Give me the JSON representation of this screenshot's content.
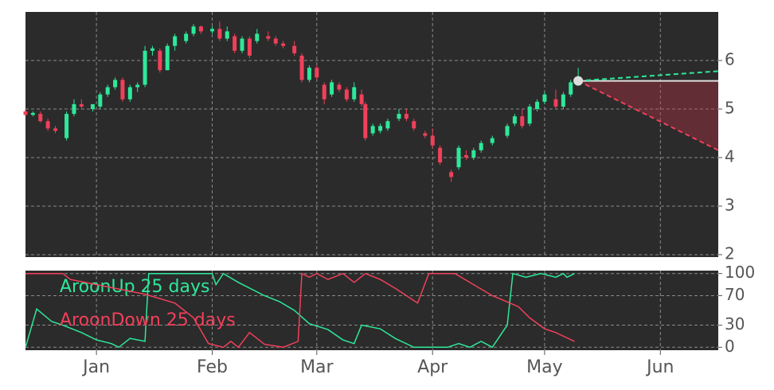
{
  "chart_data": [
    {
      "type": "candlestick",
      "up_color": "#2ee89a",
      "down_color": "#f0405a",
      "grid": true,
      "xlim": [
        -19,
        166.5
      ],
      "ylim": [
        1.95,
        7.0
      ],
      "yticks": [
        2,
        3,
        4,
        5,
        6
      ],
      "x": [
        -19,
        -17,
        -15,
        -13,
        -11,
        -8,
        -6,
        -4,
        -1,
        1,
        3,
        5,
        7,
        9,
        11,
        13,
        15,
        17,
        19,
        21,
        24,
        26,
        28,
        31,
        33,
        35,
        37,
        39,
        41,
        43,
        46,
        48,
        50,
        53,
        55,
        57,
        59,
        61,
        63,
        65,
        67,
        69,
        71,
        72,
        74,
        76,
        78,
        81,
        83,
        85,
        88,
        90,
        92,
        95,
        97,
        99,
        101,
        103,
        106,
        110,
        112,
        114,
        116,
        118,
        120,
        123,
        125,
        127,
        129
      ],
      "open": [
        4.95,
        4.88,
        4.9,
        4.75,
        4.6,
        4.4,
        4.9,
        5.1,
        5.0,
        5.05,
        5.3,
        5.45,
        5.6,
        5.2,
        5.45,
        5.5,
        6.2,
        6.2,
        5.8,
        6.3,
        6.4,
        6.55,
        6.7,
        6.6,
        6.65,
        6.45,
        6.5,
        6.2,
        6.45,
        6.4,
        6.5,
        6.45,
        6.35,
        6.3,
        6.1,
        5.6,
        5.85,
        5.5,
        5.3,
        5.5,
        5.4,
        5.2,
        5.3,
        5.1,
        4.5,
        4.55,
        4.6,
        4.8,
        4.9,
        4.75,
        4.5,
        4.45,
        4.2,
        3.7,
        3.8,
        4.05,
        4.0,
        4.15,
        4.3,
        4.45,
        4.7,
        4.85,
        4.7,
        5.0,
        5.15,
        5.2,
        5.05,
        5.3,
        5.55
      ],
      "high": [
        5.0,
        4.95,
        4.95,
        4.8,
        4.65,
        4.95,
        5.2,
        5.2,
        5.1,
        5.35,
        5.5,
        5.65,
        5.65,
        5.5,
        5.55,
        6.3,
        6.3,
        6.25,
        6.35,
        6.55,
        6.6,
        6.75,
        6.72,
        6.7,
        6.8,
        6.7,
        6.55,
        6.5,
        6.5,
        6.65,
        6.6,
        6.5,
        6.4,
        6.4,
        6.15,
        5.9,
        5.9,
        5.55,
        5.6,
        5.55,
        5.45,
        5.55,
        5.4,
        5.15,
        4.7,
        4.7,
        4.8,
        5.0,
        5.0,
        4.8,
        4.55,
        4.6,
        4.25,
        3.75,
        4.25,
        4.15,
        4.2,
        4.35,
        4.45,
        4.7,
        4.9,
        5.0,
        5.1,
        5.2,
        5.35,
        5.4,
        5.35,
        5.6,
        5.85
      ],
      "low": [
        4.85,
        4.85,
        4.72,
        4.55,
        4.5,
        4.35,
        4.85,
        5.0,
        4.95,
        5.0,
        5.25,
        5.4,
        5.15,
        5.15,
        5.35,
        5.45,
        6.1,
        5.75,
        5.8,
        6.2,
        6.35,
        6.5,
        6.55,
        6.55,
        6.4,
        6.4,
        6.15,
        6.15,
        6.05,
        6.35,
        6.4,
        6.3,
        6.25,
        6.1,
        5.55,
        5.55,
        5.6,
        5.1,
        5.25,
        5.35,
        5.15,
        5.15,
        5.05,
        4.35,
        4.45,
        4.5,
        4.55,
        4.75,
        4.75,
        4.55,
        4.4,
        4.2,
        3.85,
        3.5,
        3.75,
        3.95,
        3.95,
        4.1,
        4.25,
        4.4,
        4.65,
        4.6,
        4.65,
        4.95,
        5.1,
        5.0,
        5.0,
        5.25,
        5.5
      ],
      "close": [
        4.88,
        4.92,
        4.75,
        4.6,
        4.55,
        4.9,
        5.1,
        5.05,
        5.1,
        5.3,
        5.45,
        5.6,
        5.2,
        5.45,
        5.5,
        6.2,
        6.25,
        5.8,
        6.3,
        6.5,
        6.55,
        6.7,
        6.6,
        6.65,
        6.45,
        6.6,
        6.2,
        6.45,
        6.1,
        6.55,
        6.45,
        6.35,
        6.3,
        6.15,
        5.6,
        5.85,
        5.65,
        5.2,
        5.55,
        5.4,
        5.2,
        5.45,
        5.1,
        4.4,
        4.65,
        4.65,
        4.75,
        4.9,
        4.8,
        4.6,
        4.45,
        4.25,
        3.9,
        3.6,
        4.2,
        4.0,
        4.15,
        4.3,
        4.4,
        4.65,
        4.85,
        4.65,
        5.05,
        5.15,
        5.3,
        5.05,
        5.3,
        5.55,
        5.6
      ],
      "projection": {
        "x": [
          129,
          166.5
        ],
        "upper": [
          5.58,
          5.78
        ],
        "level": [
          5.58,
          5.58
        ],
        "lower": [
          5.58,
          4.15
        ]
      }
    },
    {
      "type": "line",
      "grid": true,
      "xlim": [
        -19,
        166.5
      ],
      "ylim": [
        -4,
        104
      ],
      "yticks": [
        0,
        30,
        70,
        100
      ],
      "xticks": [
        {
          "value": 0,
          "label": "Jan"
        },
        {
          "value": 31,
          "label": "Feb"
        },
        {
          "value": 59,
          "label": "Mar"
        },
        {
          "value": 90,
          "label": "Apr"
        },
        {
          "value": 120,
          "label": "May"
        },
        {
          "value": 151,
          "label": "Jun"
        }
      ],
      "series": [
        {
          "name": "AroonUp 25 days",
          "color": "#2ee89a",
          "x": [
            -19,
            -16,
            -12,
            -9,
            -4,
            0,
            4,
            6,
            9,
            13,
            14,
            31,
            32,
            34,
            38,
            45,
            49,
            53,
            57,
            62,
            66,
            69,
            71,
            76,
            80,
            85,
            94,
            97,
            100,
            103,
            106,
            110,
            111.5,
            115,
            119,
            123,
            125,
            126,
            128
          ],
          "values": [
            0,
            52,
            35,
            30,
            20,
            10,
            5,
            0,
            12,
            8,
            100,
            100,
            85,
            100,
            88,
            70,
            62,
            50,
            32,
            24,
            10,
            5,
            30,
            25,
            12,
            0,
            0,
            5,
            0,
            8,
            0,
            30,
            100,
            95,
            100,
            95,
            100,
            95,
            100
          ]
        },
        {
          "name": "AroonDown 25 days",
          "color": "#f0405a",
          "x": [
            -19,
            -9,
            -7,
            0,
            13,
            21,
            26,
            30,
            34,
            36,
            38,
            41,
            45,
            50,
            54,
            55,
            57,
            59,
            62,
            66,
            69,
            72,
            76,
            80,
            86,
            89,
            96,
            101,
            106,
            113,
            116,
            120,
            123,
            128
          ],
          "values": [
            100,
            100,
            92,
            85,
            72,
            60,
            40,
            5,
            0,
            8,
            0,
            20,
            4,
            0,
            8,
            100,
            95,
            100,
            92,
            100,
            88,
            100,
            92,
            80,
            60,
            100,
            100,
            85,
            70,
            55,
            40,
            25,
            20,
            8
          ]
        }
      ]
    }
  ]
}
